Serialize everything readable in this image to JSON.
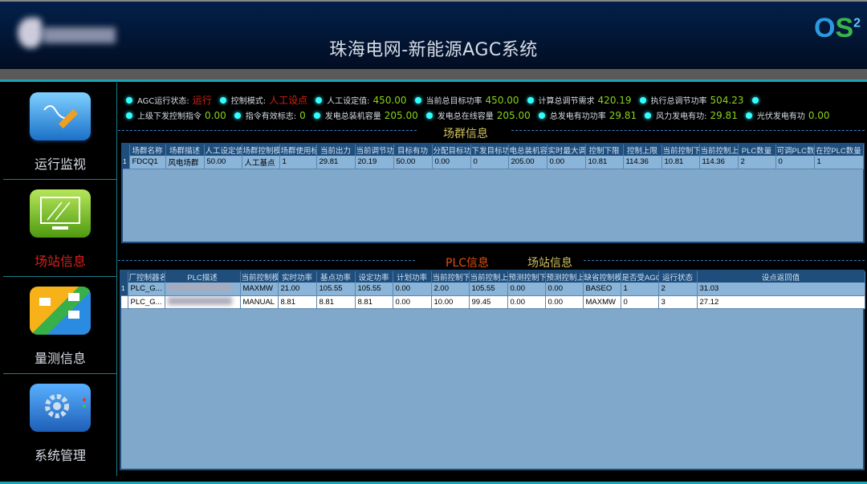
{
  "header": {
    "title": "珠海电网-新能源AGC系统",
    "logo": "OS2"
  },
  "sidebar": {
    "items": [
      {
        "label": "运行监视",
        "icon": "pen-monitor-icon",
        "active": false
      },
      {
        "label": "场站信息",
        "icon": "display-screen-icon",
        "active": true
      },
      {
        "label": "量测信息",
        "icon": "measurement-icon",
        "active": false
      },
      {
        "label": "系统管理",
        "icon": "gear-icon",
        "active": false
      }
    ]
  },
  "status": {
    "agc_state_label": "AGC运行状态:",
    "agc_state": "运行",
    "ctrl_mode_label": "控制模式:",
    "ctrl_mode": "人工设点",
    "manual_set_label": "人工设定值:",
    "manual_set": "450.00",
    "target_label": "当前总目标功率",
    "target": "450.00",
    "calc_label": "计算总调节需求",
    "calc": "420.19",
    "exec_label": "执行总调节功率",
    "exec": "504.23",
    "upper_cmd_label": "上级下发控制指令",
    "upper_cmd": "0.00",
    "valid_label": "指令有效标志:",
    "valid": "0",
    "capacity_label": "发电总装机容量",
    "capacity": "205.00",
    "online_label": "发电总在线容量",
    "online": "205.00",
    "total_p_label": "总发电有功功率",
    "total_p": "29.81",
    "wind_label": "风力发电有功:",
    "wind": "29.81",
    "pv_label": "光伏发电有功",
    "pv": "0.00"
  },
  "colors": {
    "accent": "#1aa5b5",
    "value": "#8bd31a",
    "alarm": "#d02015",
    "header_bg": "#1f4e7d"
  },
  "cluster": {
    "section_title": "场群信息",
    "columns": [
      "场群名称",
      "场群描述",
      "人工设定值",
      "场群控制模式",
      "场群使用标志",
      "当前出力",
      "当前调节功率",
      "目标有功",
      "分配目标功率",
      "下发目标功率",
      "电总装机容量",
      "实时最大调节",
      "控制下限",
      "控制上限",
      "当前控制下限",
      "当前控制上限",
      "PLC数量",
      "可调PLC数",
      "在控PLC数量"
    ],
    "rows": [
      [
        "FDCQ1",
        "风电场群",
        "50.00",
        "人工基点",
        "1",
        "29.81",
        "20.19",
        "50.00",
        "0.00",
        "0",
        "205.00",
        "0.00",
        "10.81",
        "114.36",
        "10.81",
        "114.36",
        "2",
        "0",
        "1"
      ]
    ]
  },
  "plc": {
    "section_title": "PLC信息",
    "section_title2": "场站信息",
    "columns": [
      "厂控制器名",
      "PLC描述",
      "当前控制模式",
      "实时功率",
      "基点功率",
      "设定功率",
      "计划功率",
      "当前控制下限",
      "当前控制上限",
      "预测控制下限",
      "预测控制上限",
      "缺省控制模式",
      "是否受AGC控",
      "运行状态",
      "设点返回值"
    ],
    "rows": [
      [
        "PLC_G...",
        "",
        "MAXMW",
        "21.00",
        "105.55",
        "105.55",
        "0.00",
        "2.00",
        "105.55",
        "0.00",
        "0.00",
        "BASEO",
        "1",
        "2",
        "31.03"
      ],
      [
        "PLC_G...",
        "",
        "MANUAL",
        "8.81",
        "8.81",
        "8.81",
        "0.00",
        "10.00",
        "99.45",
        "0.00",
        "0.00",
        "MAXMW",
        "0",
        "3",
        "27.12"
      ]
    ]
  }
}
